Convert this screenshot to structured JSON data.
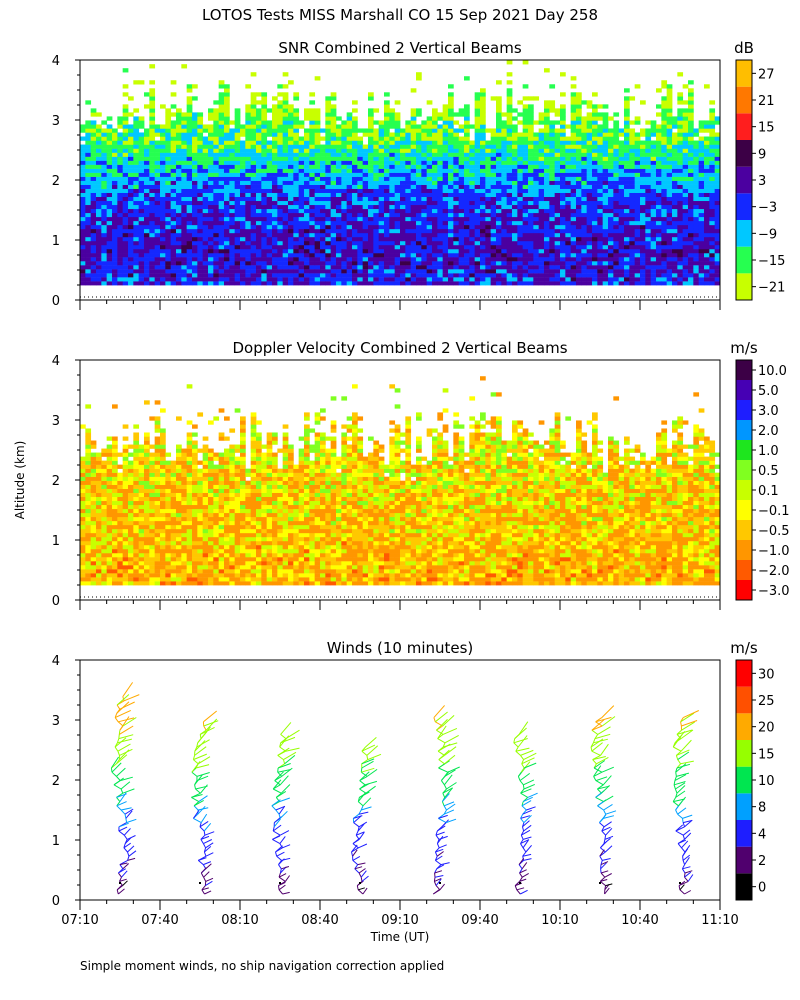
{
  "title": "LOTOS Tests MISS Marshall CO  15 Sep 2021 Day 258",
  "y_axis_label": "Altitude (km)",
  "x_axis_label": "Time (UT)",
  "x_ticks": [
    "07:10",
    "07:40",
    "08:10",
    "08:40",
    "09:10",
    "09:40",
    "10:10",
    "10:40",
    "11:10"
  ],
  "y_ticks": [
    "0",
    "1",
    "2",
    "3",
    "4"
  ],
  "footnote": "Simple moment winds, no ship navigation correction applied",
  "chart_data": [
    {
      "type": "heatmap",
      "title": "SNR Combined 2 Vertical Beams",
      "xlabel": "",
      "ylabel": "Altitude (km)",
      "x_range": [
        "07:10",
        "11:10"
      ],
      "ylim": [
        0,
        4
      ],
      "colorbar": {
        "unit": "dB",
        "ticks": [
          "27",
          "21",
          "15",
          "9",
          "3",
          "−3",
          "−9",
          "−15",
          "−21"
        ],
        "levels": [
          {
            "max": -18,
            "color": "#c8ff00"
          },
          {
            "max": -12,
            "color": "#26ff50"
          },
          {
            "max": -6,
            "color": "#00c8ff"
          },
          {
            "max": 0,
            "color": "#1428ff"
          },
          {
            "max": 6,
            "color": "#4b00a0"
          },
          {
            "max": 12,
            "color": "#3c0046"
          },
          {
            "max": 18,
            "color": "#ff1e1e"
          },
          {
            "max": 24,
            "color": "#ff7800"
          },
          {
            "max": 99,
            "color": "#ffbe00"
          }
        ]
      },
      "profile": [
        {
          "alt_km": 0.3,
          "value": -1
        },
        {
          "alt_km": 0.5,
          "value": 0
        },
        {
          "alt_km": 1.0,
          "value": 0
        },
        {
          "alt_km": 1.5,
          "value": -2
        },
        {
          "alt_km": 2.0,
          "value": -7
        },
        {
          "alt_km": 2.5,
          "value": -14
        },
        {
          "alt_km": 3.0,
          "value": -18
        },
        {
          "alt_km": 3.5,
          "value": -21
        },
        {
          "alt_km": 4.0,
          "value": -24
        }
      ],
      "coverage_top_km": 3.3
    },
    {
      "type": "heatmap",
      "title": "Doppler Velocity Combined 2 Vertical Beams",
      "xlabel": "",
      "ylabel": "Altitude (km)",
      "x_range": [
        "07:10",
        "11:10"
      ],
      "ylim": [
        0,
        4
      ],
      "colorbar": {
        "unit": "m/s",
        "ticks": [
          "10.0",
          "5.0",
          "3.0",
          "2.0",
          "1.0",
          "0.5",
          "0.1",
          "−0.1",
          "−0.5",
          "−1.0",
          "−2.0",
          "−3.0"
        ],
        "levels": [
          {
            "max": -2.5,
            "color": "#ff0000"
          },
          {
            "max": -1.5,
            "color": "#ff5a00"
          },
          {
            "max": -0.75,
            "color": "#ff9600"
          },
          {
            "max": -0.3,
            "color": "#ffc800"
          },
          {
            "max": 0,
            "color": "#ffff00"
          },
          {
            "max": 0.3,
            "color": "#c8ff00"
          },
          {
            "max": 0.75,
            "color": "#80ff20"
          },
          {
            "max": 1.5,
            "color": "#1ee61e"
          },
          {
            "max": 2.5,
            "color": "#0096ff"
          },
          {
            "max": 4,
            "color": "#1e1eff"
          },
          {
            "max": 7.5,
            "color": "#4600b4"
          },
          {
            "max": 99,
            "color": "#3c0046"
          }
        ]
      },
      "profile": [
        {
          "alt_km": 0.3,
          "value": -0.8
        },
        {
          "alt_km": 1.0,
          "value": -0.6
        },
        {
          "alt_km": 1.5,
          "value": -0.5
        },
        {
          "alt_km": 2.0,
          "value": -0.4
        },
        {
          "alt_km": 2.5,
          "value": -0.2
        }
      ],
      "coverage_top_km": 2.7
    },
    {
      "type": "scatter",
      "title": "Winds (10 minutes)",
      "xlabel": "Time (UT)",
      "ylabel": "Altitude (km)",
      "x_range": [
        "07:10",
        "11:10"
      ],
      "ylim": [
        0,
        4
      ],
      "colorbar": {
        "unit": "m/s",
        "ticks": [
          "30",
          "25",
          "20",
          "15",
          "10",
          "8",
          "4",
          "2",
          "0"
        ],
        "levels": [
          {
            "max": 2,
            "color": "#000000"
          },
          {
            "max": 4,
            "color": "#50006e"
          },
          {
            "max": 8,
            "color": "#1e1eff"
          },
          {
            "max": 10,
            "color": "#00a0ff"
          },
          {
            "max": 15,
            "color": "#00e650"
          },
          {
            "max": 20,
            "color": "#96ff00"
          },
          {
            "max": 25,
            "color": "#ffaa00"
          },
          {
            "max": 30,
            "color": "#ff5000"
          },
          {
            "max": 99,
            "color": "#ff0000"
          }
        ]
      },
      "profile_times": [
        "07:25",
        "07:55",
        "08:25",
        "08:55",
        "09:25",
        "09:55",
        "10:25",
        "10:55"
      ],
      "profile_tops_km": [
        3.4,
        3.0,
        2.8,
        2.6,
        3.1,
        2.8,
        3.1,
        3.1
      ],
      "speed_profile": [
        {
          "alt_km": 0.2,
          "speed": 3
        },
        {
          "alt_km": 1.0,
          "speed": 6
        },
        {
          "alt_km": 1.5,
          "speed": 9
        },
        {
          "alt_km": 2.0,
          "speed": 13
        },
        {
          "alt_km": 2.5,
          "speed": 17
        },
        {
          "alt_km": 3.0,
          "speed": 21
        }
      ]
    }
  ]
}
